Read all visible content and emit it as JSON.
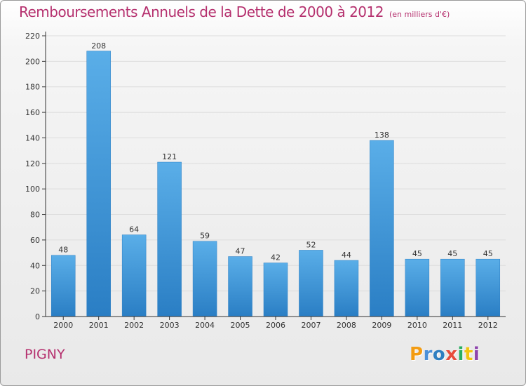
{
  "header": {
    "title": "Remboursements Annuels de la Dette de 2000 à 2012",
    "unit": "(en milliers d'€)"
  },
  "footer": {
    "commune": "PIGNY",
    "logo_text": "Proxiti",
    "logo_colors": [
      "#f39c12",
      "#4a90d9",
      "#2e7fc1",
      "#e74c3c",
      "#27ae60",
      "#f1c40f",
      "#8e44ad"
    ]
  },
  "colors": {
    "bar_top": "#5aaee8",
    "bar_bottom": "#2a7ec4",
    "title": "#b5306e",
    "axis": "#333333",
    "grid": "#dcdcdc"
  },
  "chart_data": {
    "type": "bar",
    "categories": [
      "2000",
      "2001",
      "2002",
      "2003",
      "2004",
      "2005",
      "2006",
      "2007",
      "2008",
      "2009",
      "2010",
      "2011",
      "2012"
    ],
    "values": [
      48,
      208,
      64,
      121,
      59,
      47,
      42,
      52,
      44,
      138,
      45,
      45,
      45
    ],
    "title": "Remboursements Annuels de la Dette de 2000 à 2012",
    "ylim": [
      0,
      220
    ],
    "yticks": [
      0,
      20,
      40,
      60,
      80,
      100,
      120,
      140,
      160,
      180,
      200,
      220
    ],
    "grid": true,
    "data_labels": true
  }
}
